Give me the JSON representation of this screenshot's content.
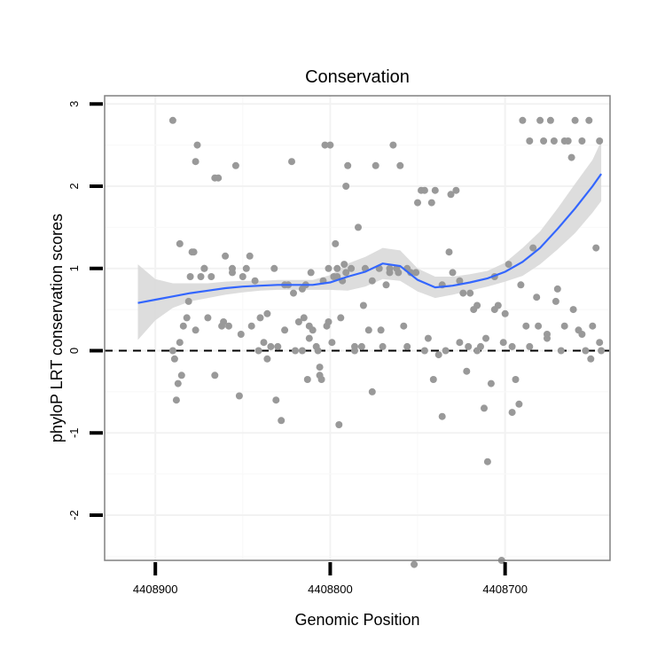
{
  "chart_data": {
    "type": "scatter",
    "title": "Conservation",
    "xlabel": "Genomic Position",
    "ylabel": "phyloP LRT conservation scores",
    "x_reversed": true,
    "xlim": [
      4408929,
      4408640
    ],
    "ylim": [
      -2.55,
      3.1
    ],
    "xticks": [
      {
        "value": 4408900,
        "label": "4408900"
      },
      {
        "value": 4408800,
        "label": "4408800"
      },
      {
        "value": 4408700,
        "label": "4408700"
      }
    ],
    "yticks": [
      {
        "value": -2,
        "label": "-2"
      },
      {
        "value": -1,
        "label": "-1"
      },
      {
        "value": 0,
        "label": "0"
      },
      {
        "value": 1,
        "label": "1"
      },
      {
        "value": 2,
        "label": "2"
      },
      {
        "value": 3,
        "label": "3"
      }
    ],
    "grid": true,
    "reference_line": {
      "y": 0,
      "style": "dashed",
      "color": "#000000"
    },
    "colors": {
      "points": "#999999",
      "smooth_line": "#3366FF",
      "ribbon": "#D9D9D9",
      "panel_border": "#808080"
    },
    "points": {
      "x": [
        4408890,
        4408889,
        4408888,
        4408887,
        4408886,
        4408885,
        4408884,
        4408882,
        4408880,
        4408879,
        4408878,
        4408877,
        4408876,
        4408874,
        4408872,
        4408870,
        4408868,
        4408866,
        4408864,
        4408862,
        4408860,
        4408858,
        4408856,
        4408854,
        4408852,
        4408850,
        4408848,
        4408845,
        4408843,
        4408840,
        4408838,
        4408836,
        4408834,
        4408832,
        4408830,
        4408828,
        4408826,
        4408824,
        4408822,
        4408820,
        4408818,
        4408816,
        4408815,
        4408814,
        4408813,
        4408812,
        4408812,
        4408810,
        4408808,
        4408807,
        4408806,
        4408805,
        4408804,
        4408803,
        4408802,
        4408801,
        4408800,
        4408799,
        4408798,
        4408797,
        4408796,
        4408795,
        4408794,
        4408793,
        4408792,
        4408791,
        4408790,
        4408788,
        4408786,
        4408784,
        4408782,
        4408780,
        4408778,
        4408776,
        4408774,
        4408772,
        4408770,
        4408768,
        4408766,
        4408764,
        4408762,
        4408760,
        4408758,
        4408756,
        4408754,
        4408752,
        4408750,
        4408748,
        4408746,
        4408744,
        4408742,
        4408740,
        4408738,
        4408736,
        4408734,
        4408732,
        4408730,
        4408728,
        4408726,
        4408724,
        4408722,
        4408720,
        4408718,
        4408716,
        4408714,
        4408712,
        4408710,
        4408708,
        4408706,
        4408704,
        4408702,
        4408700,
        4408698,
        4408696,
        4408694,
        4408692,
        4408690,
        4408688,
        4408686,
        4408684,
        4408682,
        4408680,
        4408678,
        4408676,
        4408674,
        4408672,
        4408670,
        4408668,
        4408666,
        4408664,
        4408662,
        4408660,
        4408658,
        4408656,
        4408654,
        4408652,
        4408650,
        4408648,
        4408646,
        4408645,
        4408890,
        4408886,
        4408881,
        4408877,
        4408872,
        4408866,
        4408861,
        4408856,
        4408851,
        4408846,
        4408841,
        4408836,
        4408831,
        4408826,
        4408821,
        4408816,
        4408811,
        4408806,
        4408801,
        4408796,
        4408791,
        4408786,
        4408781,
        4408776,
        4408771,
        4408766,
        4408761,
        4408756,
        4408751,
        4408746,
        4408741,
        4408736,
        4408731,
        4408726,
        4408721,
        4408716,
        4408711,
        4408706,
        4408701,
        4408696,
        4408691,
        4408686,
        4408681,
        4408676,
        4408671,
        4408666,
        4408661,
        4408656,
        4408651,
        4408646
      ],
      "y": [
        0.0,
        -0.1,
        -0.6,
        -0.4,
        0.1,
        -0.3,
        0.3,
        0.4,
        0.9,
        1.2,
        1.2,
        2.3,
        2.5,
        0.9,
        1.0,
        0.4,
        0.9,
        2.1,
        2.1,
        0.3,
        1.15,
        0.3,
        1.0,
        2.25,
        -0.55,
        0.9,
        1.0,
        0.3,
        0.85,
        0.4,
        0.1,
        -0.1,
        0.05,
        1.0,
        0.05,
        -0.85,
        0.8,
        0.8,
        2.3,
        0.0,
        0.35,
        0.75,
        0.4,
        0.8,
        -0.35,
        0.15,
        0.3,
        0.25,
        0.05,
        0.0,
        -0.2,
        -0.35,
        0.85,
        2.5,
        0.3,
        1.0,
        2.5,
        0.1,
        0.9,
        1.3,
        1.0,
        -0.9,
        0.4,
        0.85,
        1.05,
        2.0,
        2.25,
        1.0,
        0.0,
        1.5,
        0.05,
        1.0,
        0.25,
        -0.5,
        2.25,
        1.0,
        0.05,
        0.8,
        0.95,
        2.5,
        1.0,
        2.25,
        0.3,
        1.0,
        0.95,
        -2.6,
        1.8,
        1.95,
        1.95,
        0.15,
        1.8,
        1.95,
        -0.05,
        -0.8,
        0.0,
        1.2,
        0.95,
        1.95,
        0.1,
        0.7,
        -0.25,
        0.7,
        0.5,
        0.0,
        0.05,
        -0.7,
        -1.35,
        -0.4,
        0.5,
        0.55,
        -2.55,
        0.45,
        1.05,
        0.05,
        -0.35,
        -0.65,
        2.8,
        0.3,
        2.55,
        1.25,
        0.65,
        2.8,
        2.55,
        0.2,
        2.8,
        2.55,
        0.75,
        0.0,
        2.55,
        2.55,
        2.35,
        2.8,
        0.25,
        2.55,
        0.0,
        2.8,
        0.3,
        1.25,
        2.55,
        0.0,
        2.8,
        1.3,
        0.6,
        0.25,
        1.0,
        -0.3,
        0.35,
        0.95,
        0.2,
        1.15,
        0.0,
        0.45,
        -0.6,
        0.25,
        0.7,
        0.0,
        0.95,
        -0.3,
        0.35,
        0.9,
        0.95,
        0.05,
        0.55,
        0.85,
        0.25,
        1.0,
        0.95,
        0.05,
        0.95,
        0.0,
        -0.35,
        0.8,
        1.9,
        0.85,
        0.05,
        0.55,
        0.15,
        0.9,
        0.1,
        -0.75,
        0.8,
        0.05,
        0.3,
        0.15,
        0.6,
        0.3,
        0.5,
        0.2,
        -0.1,
        0.1
      ],
      "note": ""
    },
    "smooth": {
      "x": [
        4408910,
        4408900,
        4408890,
        4408880,
        4408870,
        4408860,
        4408850,
        4408840,
        4408830,
        4408820,
        4408810,
        4408800,
        4408790,
        4408780,
        4408770,
        4408760,
        4408750,
        4408740,
        4408730,
        4408720,
        4408710,
        4408700,
        4408690,
        4408680,
        4408670,
        4408660,
        4408650,
        4408645
      ],
      "y": [
        0.58,
        0.62,
        0.66,
        0.7,
        0.73,
        0.76,
        0.78,
        0.79,
        0.8,
        0.8,
        0.8,
        0.83,
        0.9,
        0.96,
        1.06,
        1.03,
        0.86,
        0.77,
        0.79,
        0.83,
        0.88,
        0.96,
        1.08,
        1.25,
        1.48,
        1.73,
        2.0,
        2.15
      ],
      "lower": [
        0.13,
        0.37,
        0.52,
        0.6,
        0.64,
        0.68,
        0.71,
        0.73,
        0.74,
        0.74,
        0.74,
        0.74,
        0.73,
        0.78,
        0.87,
        0.85,
        0.72,
        0.64,
        0.68,
        0.73,
        0.78,
        0.84,
        0.91,
        1.05,
        1.23,
        1.43,
        1.68,
        1.82
      ],
      "upper": [
        1.05,
        0.87,
        0.82,
        0.82,
        0.82,
        0.84,
        0.85,
        0.85,
        0.86,
        0.86,
        0.86,
        0.92,
        1.06,
        1.14,
        1.25,
        1.22,
        1.0,
        0.9,
        0.9,
        0.93,
        0.97,
        1.07,
        1.25,
        1.45,
        1.73,
        2.03,
        2.32,
        2.55
      ]
    }
  }
}
